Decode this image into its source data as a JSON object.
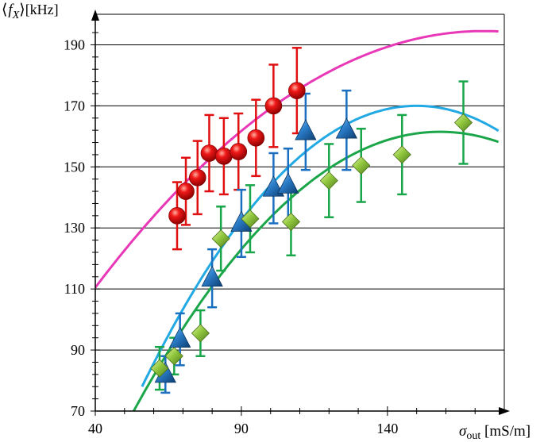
{
  "chart_data": {
    "type": "scatter",
    "title": "",
    "ylabel_math": "⟨f",
    "ylabel_sub": "X",
    "ylabel_close": "⟩",
    "ylabel_unit": "[kHz]",
    "xlabel_sym": "σ",
    "xlabel_sub": "out",
    "xlabel_unit": "[mS/m]",
    "xlim": [
      40,
      180
    ],
    "ylim": [
      70,
      200
    ],
    "x_major_ticks": [
      40,
      90,
      140
    ],
    "x_tick_labels": [
      "40",
      "90",
      "140"
    ],
    "y_major_ticks": [
      70,
      90,
      110,
      130,
      150,
      170,
      190
    ],
    "y_tick_labels": [
      "70",
      "90",
      "110",
      "130",
      "150",
      "170",
      "190"
    ],
    "grid_y": true,
    "legend": "none",
    "series": [
      {
        "marker": "sphere",
        "color": "#e01010",
        "errcolor": "#e01010",
        "points": [
          {
            "x": 68,
            "y": 134,
            "err": 11
          },
          {
            "x": 71,
            "y": 142,
            "err": 11
          },
          {
            "x": 75,
            "y": 146.5,
            "err": 12
          },
          {
            "x": 79,
            "y": 154.5,
            "err": 12.5
          },
          {
            "x": 84,
            "y": 153.5,
            "err": 12.5
          },
          {
            "x": 89,
            "y": 155,
            "err": 12.5
          },
          {
            "x": 95,
            "y": 159.5,
            "err": 12.5
          },
          {
            "x": 101,
            "y": 170,
            "err": 13.5
          },
          {
            "x": 109,
            "y": 175,
            "err": 14
          }
        ]
      },
      {
        "marker": "triangle",
        "color": "#1a5d9e",
        "errcolor": "#1a6fc0",
        "points": [
          {
            "x": 64,
            "y": 82,
            "err": 6
          },
          {
            "x": 69,
            "y": 93.5,
            "err": 8.5
          },
          {
            "x": 80,
            "y": 113.5,
            "err": 9.5
          },
          {
            "x": 90,
            "y": 131.5,
            "err": 11
          },
          {
            "x": 101,
            "y": 143,
            "err": 11.5
          },
          {
            "x": 106,
            "y": 144,
            "err": 12
          },
          {
            "x": 112,
            "y": 161.5,
            "err": 12.5
          },
          {
            "x": 126,
            "y": 162,
            "err": 13
          }
        ]
      },
      {
        "marker": "diamond",
        "color": "#8cc43c",
        "errcolor": "#19a64a",
        "points": [
          {
            "x": 62,
            "y": 84,
            "err": 7
          },
          {
            "x": 67,
            "y": 88,
            "err": 6
          },
          {
            "x": 76,
            "y": 95.5,
            "err": 7.5
          },
          {
            "x": 83,
            "y": 126.5,
            "err": 10.5
          },
          {
            "x": 93,
            "y": 133,
            "err": 11
          },
          {
            "x": 107,
            "y": 132,
            "err": 11
          },
          {
            "x": 120,
            "y": 145.5,
            "err": 12
          },
          {
            "x": 131,
            "y": 150.5,
            "err": 12
          },
          {
            "x": 145,
            "y": 154,
            "err": 13
          },
          {
            "x": 166,
            "y": 164.5,
            "err": 13.5
          }
        ]
      }
    ],
    "curves": [
      {
        "color": "#e838b8",
        "peak_x": 173,
        "peak_y": 194.5,
        "k": 0.00475,
        "x_from": 40,
        "x_to": 178
      },
      {
        "color": "#22a9e3",
        "peak_x": 150,
        "peak_y": 170,
        "k": 0.01041,
        "x_from": 56,
        "x_to": 178
      },
      {
        "color": "#1ca64a",
        "peak_x": 158,
        "peak_y": 161.5,
        "k": 0.00832,
        "x_from": 50,
        "x_to": 178
      }
    ]
  }
}
